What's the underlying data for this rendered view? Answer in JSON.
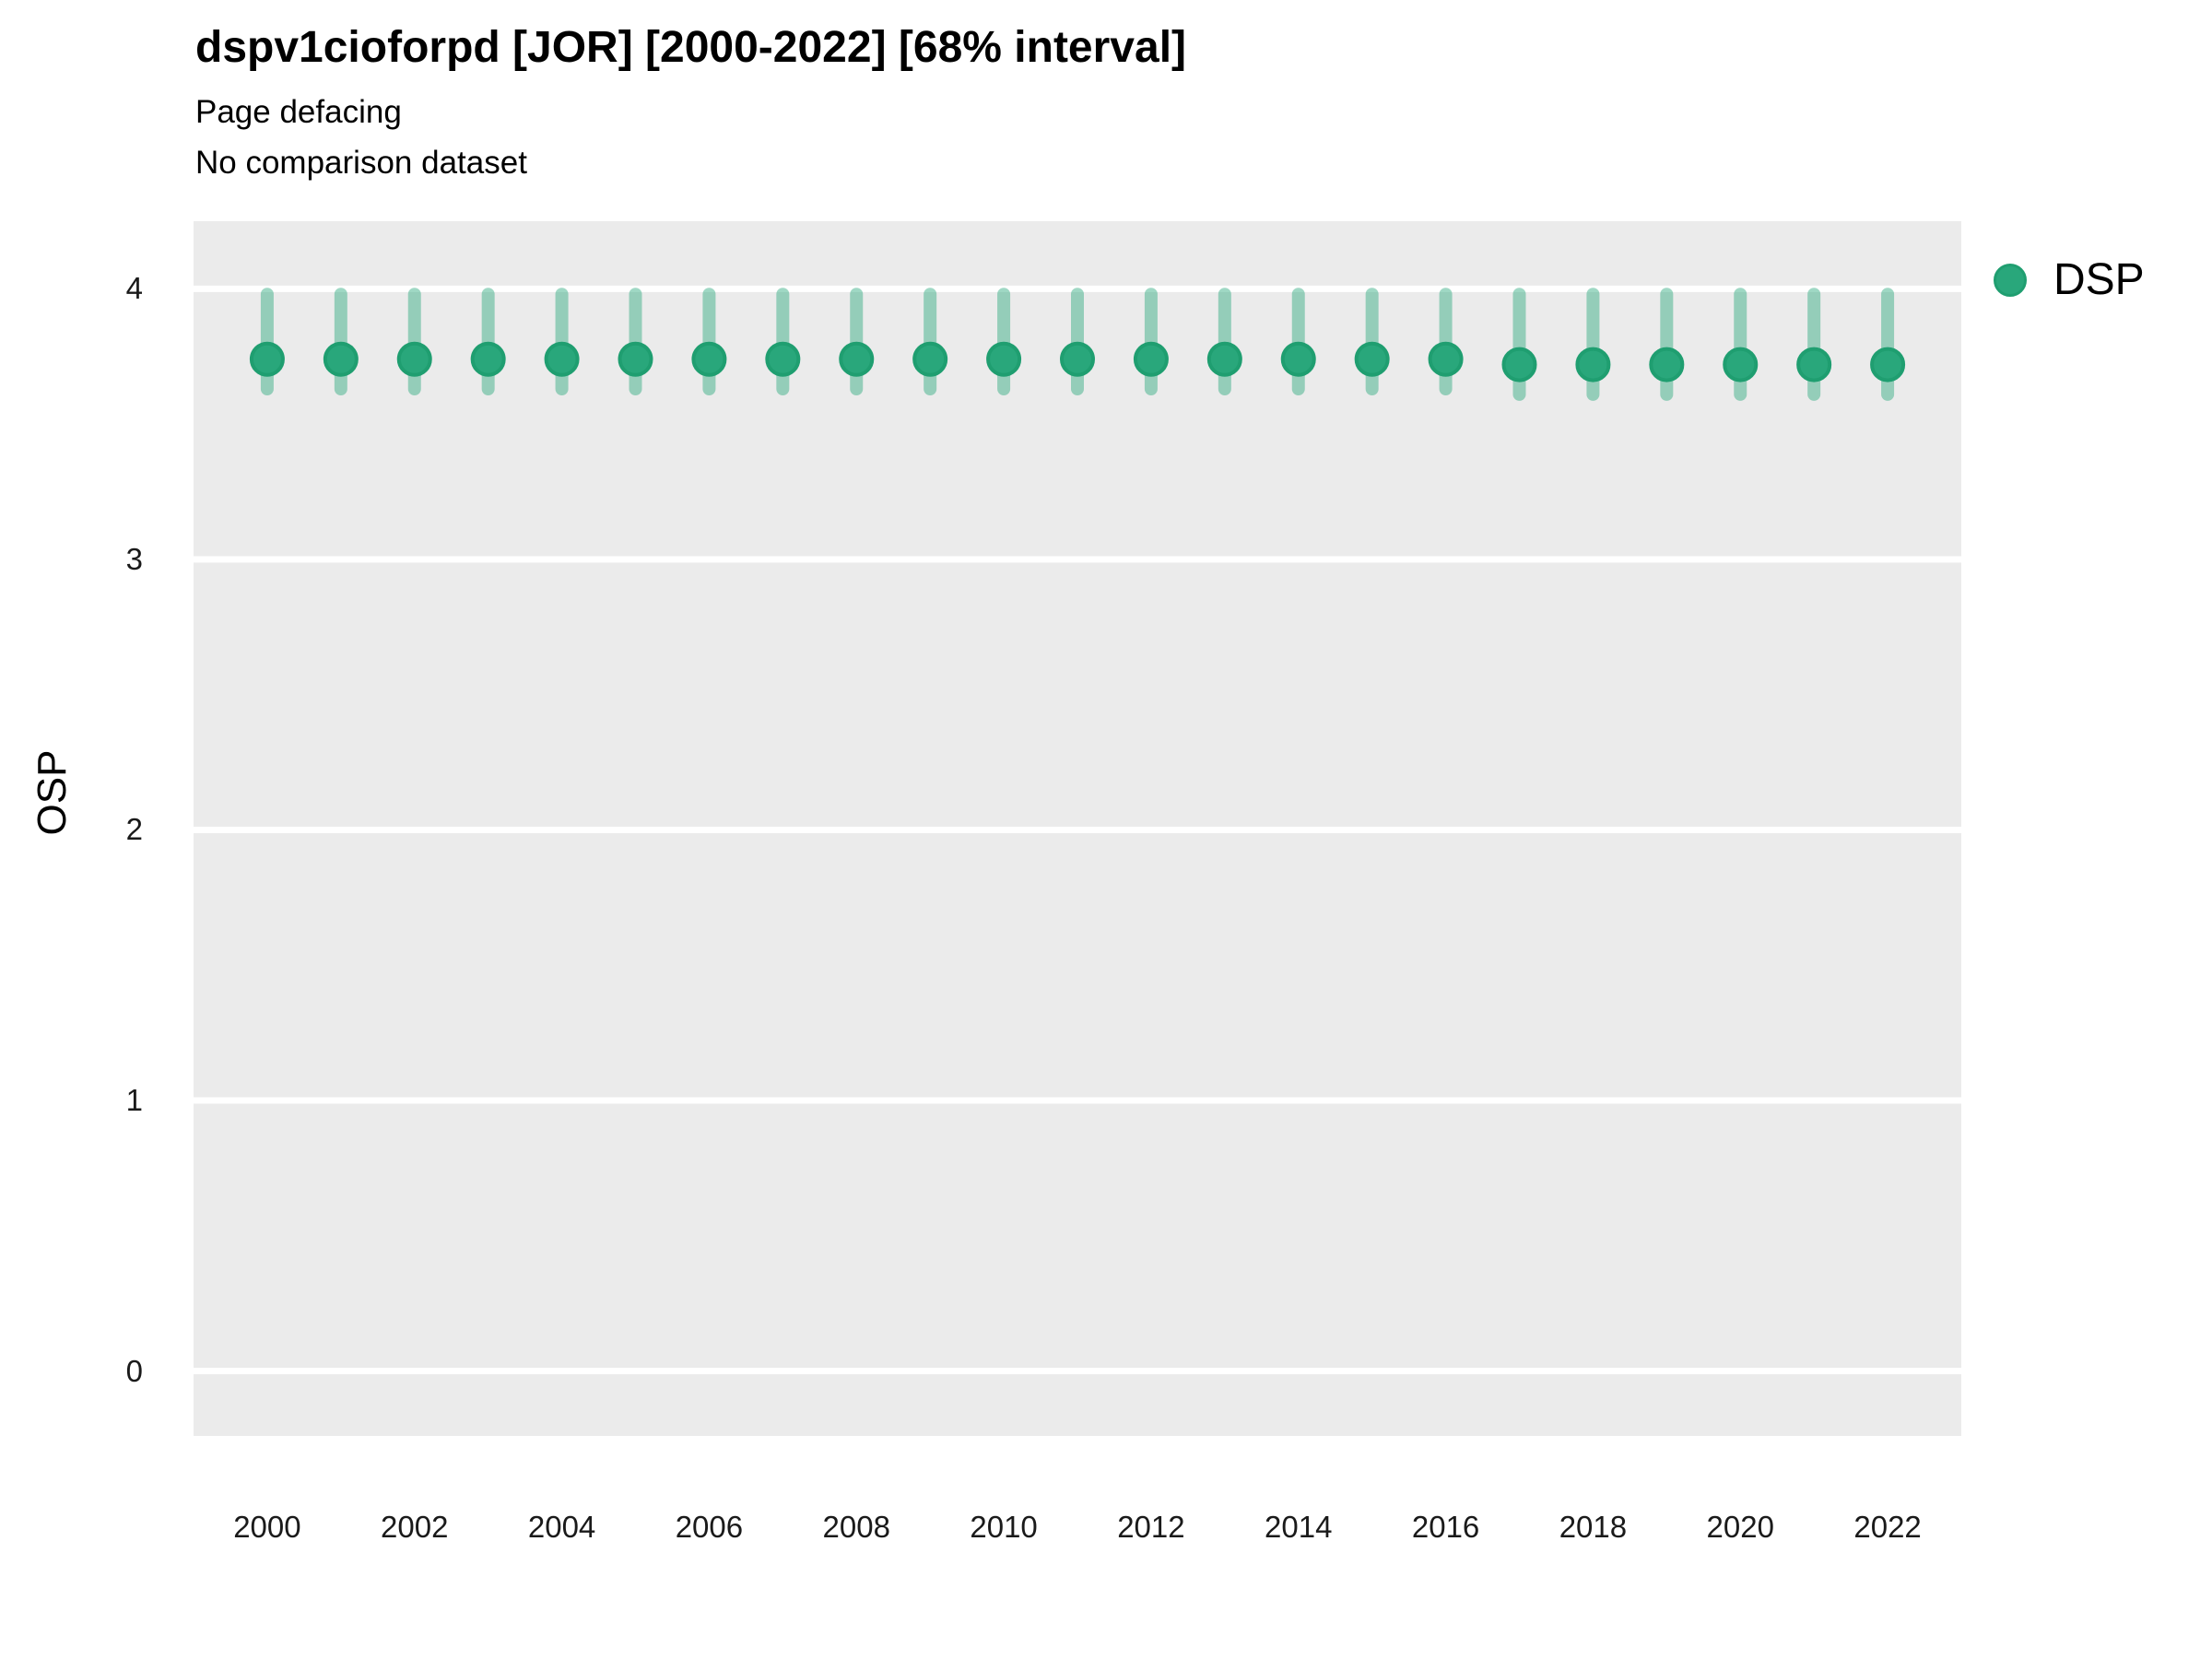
{
  "header": {
    "title": "dspv1cioforpd [JOR] [2000-2022] [68% interval]",
    "subtitle": "Page defacing",
    "note": "No comparison dataset"
  },
  "legend": {
    "label": "DSP"
  },
  "axes": {
    "y_label": "OSP"
  },
  "colors": {
    "point_fill": "#29a77b",
    "point_stroke": "#1f9e70",
    "interval": "rgba(42,168,124,0.45)",
    "panel_background": "#ebebeb",
    "gridline": "#ffffff",
    "text": "#000000"
  },
  "chart_data": {
    "type": "pointrange",
    "title": "dspv1cioforpd [JOR] [2000-2022] [68% interval]",
    "subtitle": "Page defacing",
    "note": "No comparison dataset",
    "xlabel": "",
    "ylabel": "OSP",
    "legend_position": "right",
    "grid": "horizontal-major-only",
    "x_domain": [
      1999,
      2023
    ],
    "y_domain": [
      -0.24,
      4.25
    ],
    "x_ticks": [
      2000,
      2002,
      2004,
      2006,
      2008,
      2010,
      2012,
      2014,
      2016,
      2018,
      2020,
      2022
    ],
    "y_ticks": [
      0,
      1,
      2,
      3,
      4
    ],
    "interval_label": "68% interval",
    "series": [
      {
        "name": "DSP",
        "years": [
          2000,
          2001,
          2002,
          2003,
          2004,
          2005,
          2006,
          2007,
          2008,
          2009,
          2010,
          2011,
          2012,
          2013,
          2014,
          2015,
          2016,
          2017,
          2018,
          2019,
          2020,
          2021,
          2022
        ],
        "values": [
          3.74,
          3.74,
          3.74,
          3.74,
          3.74,
          3.74,
          3.74,
          3.74,
          3.74,
          3.74,
          3.74,
          3.74,
          3.74,
          3.74,
          3.74,
          3.74,
          3.74,
          3.72,
          3.72,
          3.72,
          3.72,
          3.72,
          3.72
        ],
        "low": [
          3.63,
          3.63,
          3.63,
          3.63,
          3.63,
          3.63,
          3.63,
          3.63,
          3.63,
          3.63,
          3.63,
          3.63,
          3.63,
          3.63,
          3.63,
          3.63,
          3.63,
          3.61,
          3.61,
          3.61,
          3.61,
          3.61,
          3.61
        ],
        "high": [
          3.98,
          3.98,
          3.98,
          3.98,
          3.98,
          3.98,
          3.98,
          3.98,
          3.98,
          3.98,
          3.98,
          3.98,
          3.98,
          3.98,
          3.98,
          3.98,
          3.98,
          3.98,
          3.98,
          3.98,
          3.98,
          3.98,
          3.98
        ]
      }
    ]
  }
}
